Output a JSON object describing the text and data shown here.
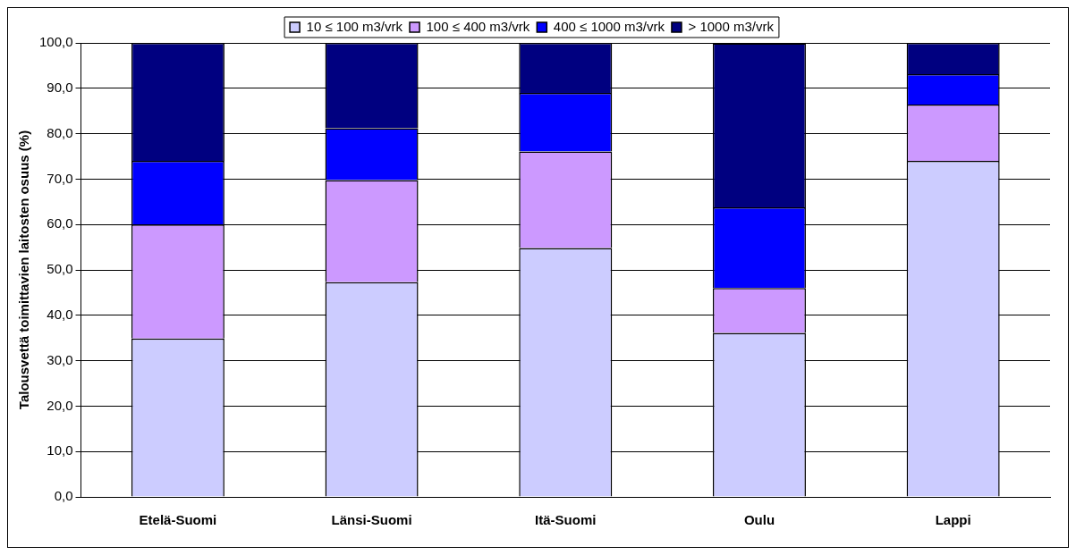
{
  "chart_data": {
    "type": "bar",
    "stacked": true,
    "ylabel": "Talousvettä toimittavien laitosten osuus (%)",
    "categories": [
      "Etelä-Suomi",
      "Länsi-Suomi",
      "Itä-Suomi",
      "Oulu",
      "Lappi"
    ],
    "series": [
      {
        "name": "10 ≤ 100 m3/vrk",
        "color": "#ccccff",
        "values": [
          34.9,
          47.3,
          54.8,
          36.1,
          74.0
        ]
      },
      {
        "name": "100 ≤ 400 m3/vrk",
        "color": "#cc99ff",
        "values": [
          25.1,
          22.5,
          21.3,
          9.9,
          12.4
        ]
      },
      {
        "name": "400 ≤ 1000 m3/vrk",
        "color": "#0000ff",
        "values": [
          14.0,
          11.4,
          12.9,
          17.8,
          6.7
        ]
      },
      {
        "name": "> 1000 m3/vrk",
        "color": "#000080",
        "values": [
          26.0,
          18.8,
          11.0,
          36.1,
          6.9
        ]
      }
    ],
    "ylim": [
      0,
      100
    ],
    "yticks": [
      {
        "value": 0,
        "label": "0,0"
      },
      {
        "value": 10,
        "label": "10,0"
      },
      {
        "value": 20,
        "label": "20,0"
      },
      {
        "value": 30,
        "label": "30,0"
      },
      {
        "value": 40,
        "label": "40,0"
      },
      {
        "value": 50,
        "label": "50,0"
      },
      {
        "value": 60,
        "label": "60,0"
      },
      {
        "value": 70,
        "label": "70,0"
      },
      {
        "value": 80,
        "label": "80,0"
      },
      {
        "value": 90,
        "label": "90,0"
      },
      {
        "value": 100,
        "label": "100,0"
      }
    ],
    "grid": "y",
    "legend": "top"
  }
}
